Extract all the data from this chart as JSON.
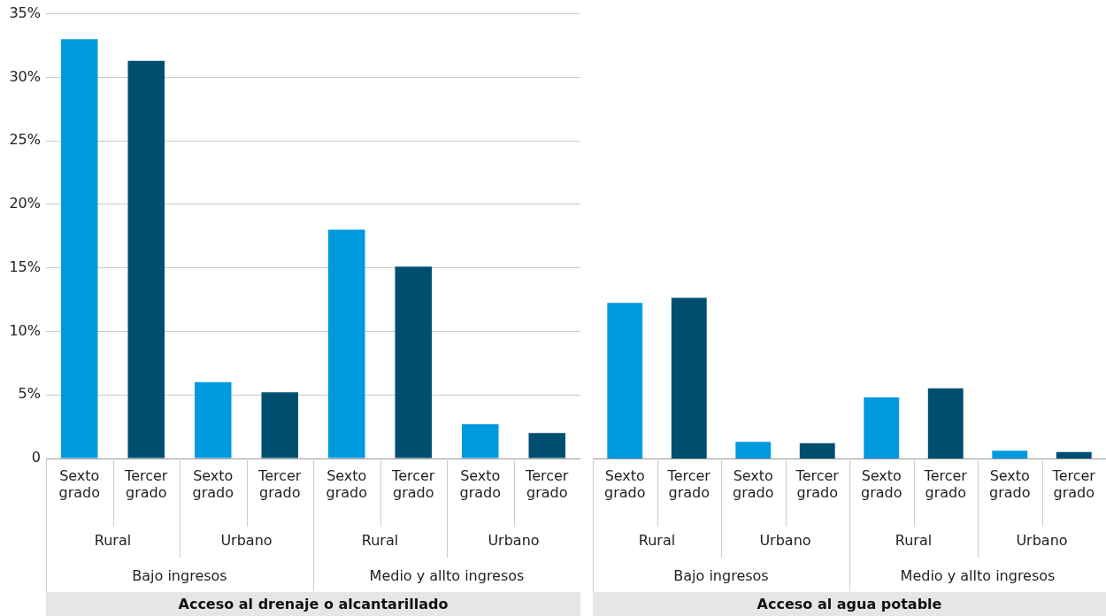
{
  "chart_data": [
    {
      "type": "bar",
      "categories": [
        "Sexto grado",
        "Tercer grado",
        "Sexto grado",
        "Tercer grado",
        "Sexto grado",
        "Tercer grado",
        "Sexto grado",
        "Tercer grado"
      ],
      "values": [
        33.0,
        31.3,
        6.0,
        5.2,
        18.0,
        15.1,
        2.7,
        2.0
      ],
      "colors": [
        "#009ade",
        "#004f71",
        "#009ade",
        "#004f71",
        "#009ade",
        "#004f71",
        "#009ade",
        "#004f71"
      ],
      "ylim": [
        0,
        35
      ],
      "yticks": [
        {
          "value": 0,
          "label": "0"
        },
        {
          "value": 5,
          "label": "5%"
        },
        {
          "value": 10,
          "label": "10%"
        },
        {
          "value": 15,
          "label": "15%"
        },
        {
          "value": 20,
          "label": "20%"
        },
        {
          "value": 25,
          "label": "25%"
        },
        {
          "value": 30,
          "label": "30%"
        },
        {
          "value": 35,
          "label": "35%"
        }
      ],
      "grid": "y",
      "legend": false,
      "annotations": [
        "Rural",
        "Urbano",
        "Rural",
        "Urbano",
        "Bajo ingresos",
        "Medio y allto ingresos",
        "Acceso al drenaje o alcantarillado"
      ]
    },
    {
      "type": "bar",
      "categories": [
        "Sexto grado",
        "Tercer grado",
        "Sexto grado",
        "Tercer grado",
        "Sexto grado",
        "Tercer grado",
        "Sexto grado",
        "Tercer grado"
      ],
      "values": [
        12.2,
        12.6,
        1.3,
        1.2,
        4.8,
        5.5,
        0.6,
        0.5
      ],
      "colors": [
        "#009ade",
        "#004f71",
        "#009ade",
        "#004f71",
        "#009ade",
        "#004f71",
        "#009ade",
        "#004f71"
      ],
      "ylim": [
        0,
        35
      ],
      "yticks": [
        {
          "value": 0,
          "label": null
        },
        {
          "value": 5,
          "label": null
        },
        {
          "value": 10,
          "label": null
        },
        {
          "value": 15,
          "label": null
        },
        {
          "value": 20,
          "label": null
        },
        {
          "value": 25,
          "label": null
        },
        {
          "value": 30,
          "label": null
        },
        {
          "value": 35,
          "label": null
        }
      ],
      "grid": "y",
      "legend": false,
      "tick_labels": "x",
      "annotations": [
        "Rural",
        "Urbano",
        "Rural",
        "Urbano",
        "Bajo ingresos",
        "Medio y allto ingresos",
        "Acceso al agua potable"
      ]
    }
  ]
}
